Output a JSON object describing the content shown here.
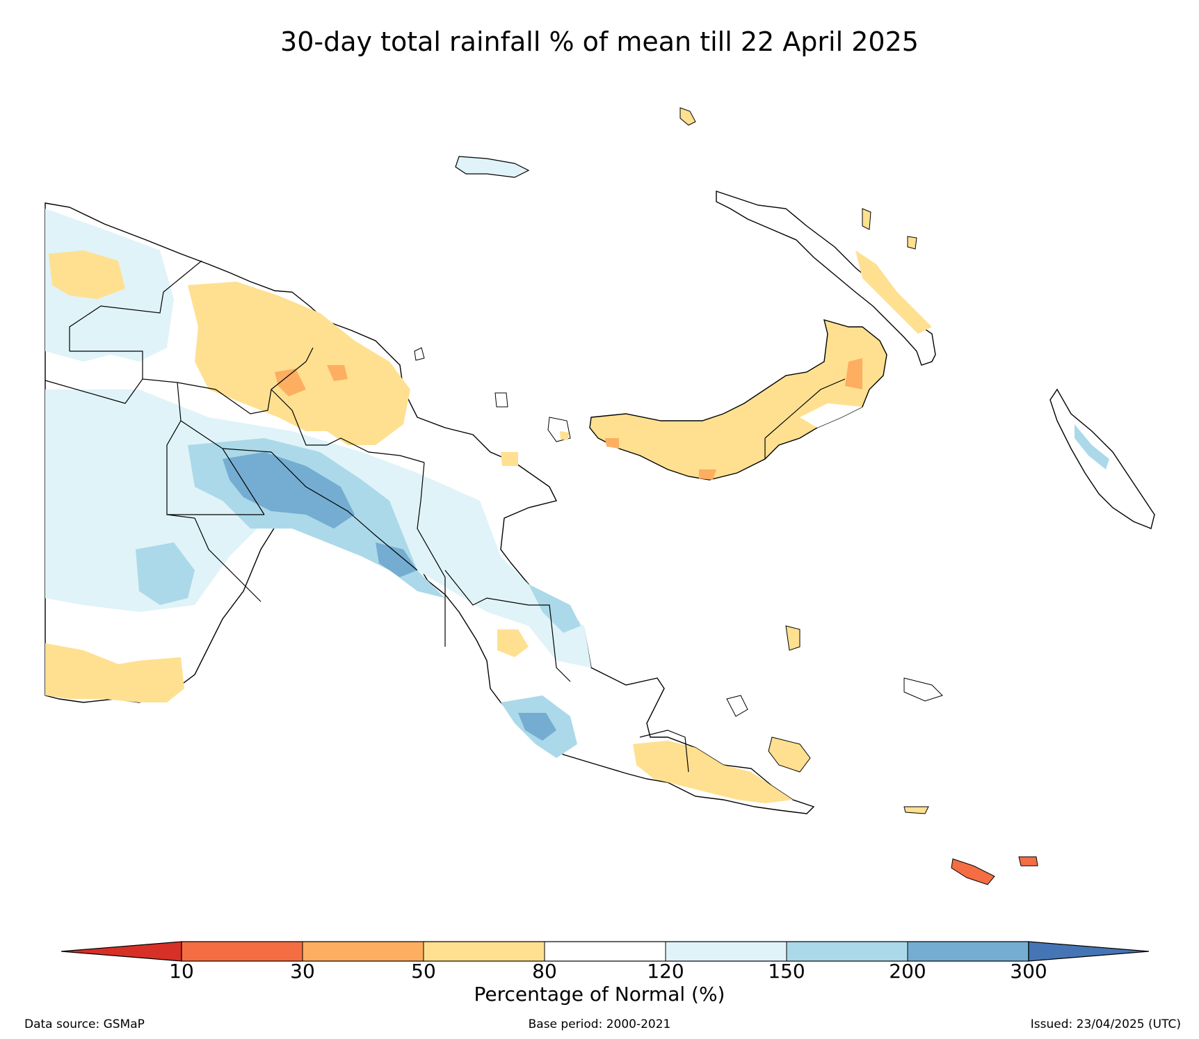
{
  "title": "30-day total rainfall % of mean till 22 April 2025",
  "colorbar": {
    "label": "Percentage of Normal (%)",
    "ticks": [
      "10",
      "30",
      "50",
      "80",
      "120",
      "150",
      "200",
      "300"
    ],
    "under_color": "#d73027",
    "over_color": "#4575b4",
    "bins": [
      {
        "range": "10-30",
        "color": "#f46d43"
      },
      {
        "range": "30-50",
        "color": "#fdae61"
      },
      {
        "range": "50-80",
        "color": "#fee090"
      },
      {
        "range": "80-120",
        "color": "#ffffff"
      },
      {
        "range": "120-150",
        "color": "#e0f3f8"
      },
      {
        "range": "150-200",
        "color": "#abd9e9"
      },
      {
        "range": "200-300",
        "color": "#74add1"
      }
    ]
  },
  "footer": {
    "data_source": "Data source: GSMaP",
    "base_period": "Base period: 2000-2021",
    "issued": "Issued: 23/04/2025 (UTC)"
  }
}
